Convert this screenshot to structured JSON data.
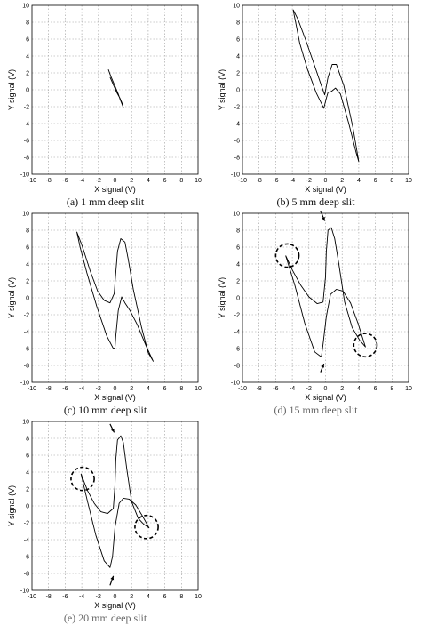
{
  "chart_data": [
    {
      "id": "a",
      "type": "line",
      "caption": "(a) 1 mm deep slit",
      "caption_gray": false,
      "xlabel": "X signal (V)",
      "ylabel": "Y signal (V)",
      "xlim": [
        -10,
        10
      ],
      "ylim": [
        -10,
        10
      ],
      "grid": true,
      "xticks": [
        -10,
        -8,
        -6,
        -4,
        -2,
        0,
        2,
        4,
        6,
        8,
        10
      ],
      "yticks": [
        -10,
        -8,
        -6,
        -4,
        -2,
        0,
        2,
        4,
        6,
        8,
        10
      ],
      "bold": true,
      "series": [
        {
          "x": [
            -0.8,
            -0.5,
            -0.2,
            0.1,
            0.4,
            0.6,
            0.8,
            1.0,
            0.9,
            0.6,
            0.2,
            -0.2,
            -0.6
          ],
          "y": [
            2.4,
            1.6,
            0.9,
            0.2,
            -0.5,
            -1.1,
            -1.6,
            -2.1,
            -1.7,
            -1.0,
            -0.3,
            0.6,
            1.5
          ]
        }
      ],
      "circles": [],
      "arrows": []
    },
    {
      "id": "b",
      "type": "line",
      "caption": "(b) 5 mm deep slit",
      "caption_gray": false,
      "xlabel": "X signal (V)",
      "ylabel": "Y signal (V)",
      "xlim": [
        -10,
        10
      ],
      "ylim": [
        -10,
        10
      ],
      "grid": true,
      "xticks": [
        -10,
        -8,
        -6,
        -4,
        -2,
        0,
        2,
        4,
        6,
        8,
        10
      ],
      "yticks": [
        -10,
        -8,
        -6,
        -4,
        -2,
        0,
        2,
        4,
        6,
        8,
        10
      ],
      "bold": false,
      "series": [
        {
          "x": [
            -3.9,
            -3.3,
            -2.4,
            -1.4,
            -0.5,
            -0.1,
            0.3,
            0.8,
            1.3,
            2.2,
            3.3,
            4.0,
            3.7,
            2.8,
            1.8,
            1.2,
            0.7,
            0.3,
            0.1,
            -0.2,
            -1.1,
            -2.2,
            -3.1,
            -3.9
          ],
          "y": [
            9.5,
            8.3,
            5.9,
            3.1,
            0.5,
            -0.6,
            1.5,
            3.0,
            3.0,
            0.5,
            -4.5,
            -8.5,
            -7.5,
            -4.0,
            -0.5,
            0.2,
            -0.2,
            -0.3,
            -1.0,
            -2.2,
            -0.4,
            2.5,
            5.5,
            9.5
          ]
        }
      ],
      "circles": [],
      "arrows": []
    },
    {
      "id": "c",
      "type": "line",
      "caption": "(c) 10 mm deep slit",
      "caption_gray": false,
      "xlabel": "X signal (V)",
      "ylabel": "Y signal (V)",
      "xlim": [
        -10,
        10
      ],
      "ylim": [
        -10,
        10
      ],
      "grid": true,
      "xticks": [
        -10,
        -8,
        -6,
        -4,
        -2,
        0,
        2,
        4,
        6,
        8,
        10
      ],
      "yticks": [
        -10,
        -8,
        -6,
        -4,
        -2,
        0,
        2,
        4,
        6,
        8,
        10
      ],
      "bold": false,
      "series": [
        {
          "x": [
            -4.6,
            -3.9,
            -3.0,
            -2.1,
            -1.3,
            -0.6,
            -0.1,
            0.1,
            0.3,
            0.7,
            1.2,
            1.6,
            2.2,
            3.2,
            4.0,
            4.6,
            3.7,
            2.7,
            1.8,
            1.2,
            0.8,
            0.4,
            0.1,
            0.0,
            -0.2,
            -1.0,
            -2.2,
            -3.4,
            -4.2,
            -4.6
          ],
          "y": [
            7.8,
            6.0,
            3.2,
            0.8,
            -0.3,
            -0.6,
            0.5,
            3.0,
            5.5,
            7.0,
            6.6,
            4.5,
            1.0,
            -3.5,
            -6.5,
            -7.5,
            -5.6,
            -3.2,
            -1.5,
            -0.6,
            0.1,
            -1.5,
            -4.5,
            -5.9,
            -6.0,
            -4.5,
            -1.0,
            3.0,
            6.0,
            7.8
          ]
        }
      ],
      "circles": [],
      "arrows": []
    },
    {
      "id": "d",
      "type": "line",
      "caption": "(d) 15 mm deep slit",
      "caption_gray": true,
      "xlabel": "X signal (V)",
      "ylabel": "Y signal (V)",
      "xlim": [
        -10,
        10
      ],
      "ylim": [
        -10,
        10
      ],
      "grid": true,
      "xticks": [
        -10,
        -8,
        -6,
        -4,
        -2,
        0,
        2,
        4,
        6,
        8,
        10
      ],
      "yticks": [
        -10,
        -8,
        -6,
        -4,
        -2,
        0,
        2,
        4,
        6,
        8,
        10
      ],
      "bold": false,
      "series": [
        {
          "x": [
            -4.8,
            -4.0,
            -3.0,
            -2.0,
            -1.0,
            -0.3,
            0.0,
            0.1,
            0.3,
            0.7,
            1.1,
            1.6,
            2.3,
            3.2,
            4.1,
            4.8,
            3.9,
            3.0,
            2.1,
            1.3,
            0.6,
            0.1,
            -0.3,
            -0.5,
            -1.3,
            -2.5,
            -3.7,
            -4.8
          ],
          "y": [
            5.0,
            3.3,
            1.5,
            0.1,
            -0.7,
            -0.5,
            2.5,
            5.5,
            8.0,
            8.3,
            7.0,
            4.0,
            -0.5,
            -3.5,
            -5.0,
            -5.8,
            -3.0,
            -0.6,
            0.8,
            1.0,
            0.4,
            -2.2,
            -5.5,
            -7.0,
            -6.4,
            -3.0,
            1.5,
            5.0
          ]
        }
      ],
      "circles": [
        {
          "x": -4.6,
          "y": 5.0,
          "r": 1.4
        },
        {
          "x": 4.8,
          "y": -5.6,
          "r": 1.4
        }
      ],
      "arrows": [
        {
          "x1": -0.6,
          "y1": 10.3,
          "x2": -0.1,
          "y2": 9.1
        },
        {
          "x1": -0.6,
          "y1": -8.8,
          "x2": -0.2,
          "y2": -7.8
        }
      ]
    },
    {
      "id": "e",
      "type": "line",
      "caption": "(e) 20 mm deep slit",
      "caption_gray": true,
      "xlabel": "X signal (V)",
      "ylabel": "Y signal (V)",
      "xlim": [
        -10,
        10
      ],
      "ylim": [
        -10,
        10
      ],
      "grid": true,
      "xticks": [
        -10,
        -8,
        -6,
        -4,
        -2,
        0,
        2,
        4,
        6,
        8,
        10
      ],
      "yticks": [
        -10,
        -8,
        -6,
        -4,
        -2,
        0,
        2,
        4,
        6,
        8,
        10
      ],
      "bold": false,
      "series": [
        {
          "x": [
            -4.1,
            -3.3,
            -2.5,
            -1.7,
            -0.9,
            -0.2,
            0.0,
            0.1,
            0.3,
            0.7,
            1.0,
            1.4,
            2.0,
            2.8,
            3.5,
            4.1,
            3.3,
            2.5,
            1.7,
            1.0,
            0.5,
            0.0,
            -0.3,
            -0.6,
            -1.3,
            -2.3,
            -3.3,
            -4.1
          ],
          "y": [
            3.8,
            1.8,
            0.3,
            -0.7,
            -0.9,
            -0.3,
            2.5,
            5.5,
            7.8,
            8.3,
            7.5,
            4.5,
            0.5,
            -1.5,
            -2.2,
            -2.6,
            -1.2,
            0.1,
            0.8,
            0.9,
            0.3,
            -2.5,
            -6.0,
            -7.3,
            -6.5,
            -3.5,
            0.5,
            3.8
          ]
        }
      ],
      "circles": [
        {
          "x": -3.9,
          "y": 3.2,
          "r": 1.4
        },
        {
          "x": 3.8,
          "y": -2.5,
          "r": 1.4
        }
      ],
      "arrows": [
        {
          "x1": -0.6,
          "y1": 9.7,
          "x2": -0.1,
          "y2": 8.7
        },
        {
          "x1": -0.6,
          "y1": -9.4,
          "x2": -0.2,
          "y2": -8.3
        }
      ]
    }
  ]
}
